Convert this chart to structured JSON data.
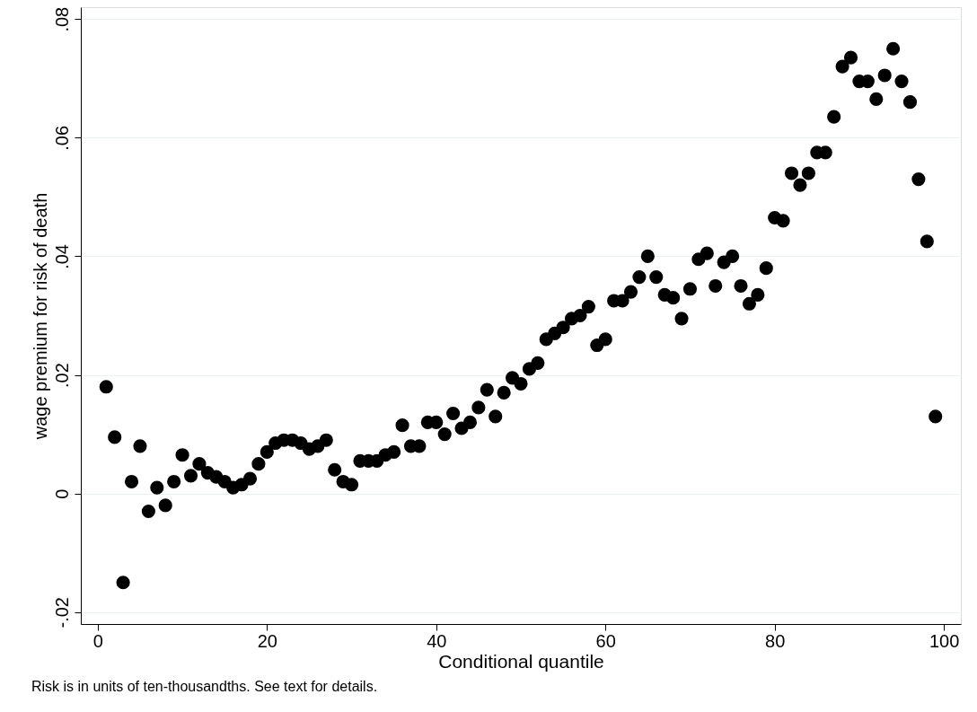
{
  "chart_data": {
    "type": "scatter",
    "xlabel": "Conditional quantile",
    "ylabel": "wage premium for risk of death",
    "x": [
      1,
      2,
      3,
      4,
      5,
      6,
      7,
      8,
      9,
      10,
      11,
      12,
      13,
      14,
      15,
      16,
      17,
      18,
      19,
      20,
      21,
      22,
      23,
      24,
      25,
      26,
      27,
      28,
      29,
      30,
      31,
      32,
      33,
      34,
      35,
      36,
      37,
      38,
      39,
      40,
      41,
      42,
      43,
      44,
      45,
      46,
      47,
      48,
      49,
      50,
      51,
      52,
      53,
      54,
      55,
      56,
      57,
      58,
      59,
      60,
      61,
      62,
      63,
      64,
      65,
      66,
      67,
      68,
      69,
      70,
      71,
      72,
      73,
      74,
      75,
      76,
      77,
      78,
      79,
      80,
      81,
      82,
      83,
      84,
      85,
      86,
      87,
      88,
      89,
      90,
      91,
      92,
      93,
      94,
      95,
      96,
      97,
      98,
      99
    ],
    "series": [
      {
        "color": "#000000",
        "values": [
          0.018,
          0.0095,
          -0.015,
          0.002,
          0.008,
          -0.003,
          0.001,
          -0.002,
          0.002,
          0.0065,
          0.003,
          0.005,
          0.0035,
          0.0028,
          0.002,
          0.001,
          0.0015,
          0.0025,
          0.005,
          0.007,
          0.0085,
          0.009,
          0.009,
          0.0085,
          0.0075,
          0.008,
          0.009,
          0.004,
          0.002,
          0.0015,
          0.0055,
          0.0055,
          0.0055,
          0.0065,
          0.007,
          0.0115,
          0.008,
          0.008,
          0.012,
          0.012,
          0.01,
          0.0135,
          0.011,
          0.012,
          0.0145,
          0.0175,
          0.013,
          0.017,
          0.0195,
          0.0185,
          0.021,
          0.022,
          0.026,
          0.027,
          0.028,
          0.0295,
          0.03,
          0.0315,
          0.025,
          0.026,
          0.0325,
          0.0325,
          0.034,
          0.0365,
          0.04,
          0.0365,
          0.0335,
          0.033,
          0.0295,
          0.0345,
          0.0395,
          0.0405,
          0.035,
          0.039,
          0.04,
          0.035,
          0.032,
          0.0335,
          0.038,
          0.0465,
          0.046,
          0.054,
          0.052,
          0.054,
          0.0575,
          0.0575,
          0.0635,
          0.072,
          0.0735,
          0.0695,
          0.0695,
          0.0665,
          0.0705,
          0.075,
          0.0695,
          0.066,
          0.053,
          0.0425,
          0.013
        ]
      }
    ],
    "xlim": [
      -2,
      102
    ],
    "ylim": [
      -0.022,
      0.082
    ],
    "xticks": [
      0,
      20,
      40,
      60,
      80,
      100
    ],
    "yticks": [
      {
        "value": -0.02,
        "label": "-.02"
      },
      {
        "value": 0,
        "label": "0"
      },
      {
        "value": 0.02,
        "label": ".02"
      },
      {
        "value": 0.04,
        "label": ".04"
      },
      {
        "value": 0.06,
        "label": ".06"
      },
      {
        "value": 0.08,
        "label": ".08"
      }
    ],
    "grid": "y",
    "marker": "circle",
    "legend": false,
    "annotations": [
      "Risk is in units of ten-thousandths. See text for details."
    ]
  }
}
